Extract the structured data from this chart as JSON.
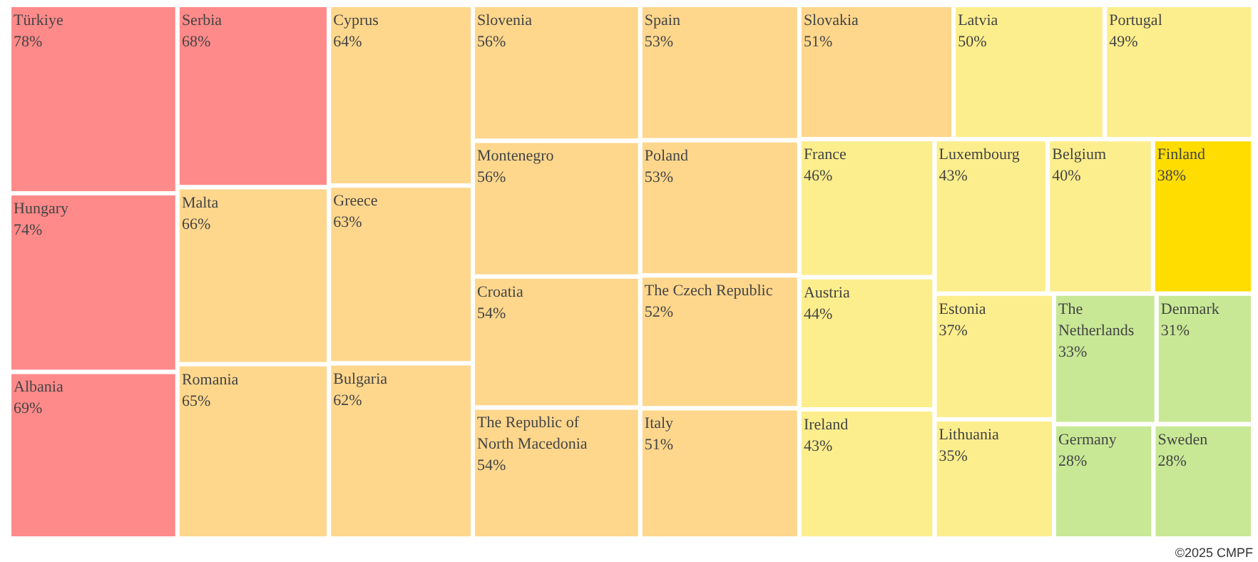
{
  "chart_data": {
    "type": "other",
    "categories": [
      "Türkiye",
      "Hungary",
      "Albania",
      "Serbia",
      "Malta",
      "Romania",
      "Cyprus",
      "Greece",
      "Bulgaria",
      "Slovenia",
      "Montenegro",
      "Croatia",
      "The Republic of North Macedonia",
      "Spain",
      "Poland",
      "The Czech Republic",
      "Italy",
      "Slovakia",
      "Latvia",
      "Portugal",
      "France",
      "Austria",
      "Ireland",
      "Luxembourg",
      "Belgium",
      "Finland",
      "Estonia",
      "Lithuania",
      "The Netherlands",
      "Denmark",
      "Germany",
      "Sweden"
    ],
    "values": [
      78,
      74,
      69,
      68,
      66,
      65,
      64,
      63,
      62,
      56,
      56,
      54,
      54,
      53,
      53,
      52,
      51,
      51,
      50,
      49,
      46,
      44,
      43,
      43,
      40,
      38,
      37,
      35,
      33,
      31,
      28,
      28
    ],
    "value_labels": [
      "78%",
      "74%",
      "69%",
      "68%",
      "66%",
      "65%",
      "64%",
      "63%",
      "62%",
      "56%",
      "56%",
      "54%",
      "54%",
      "53%",
      "53%",
      "52%",
      "51%",
      "51%",
      "50%",
      "49%",
      "46%",
      "44%",
      "43%",
      "43%",
      "40%",
      "38%",
      "37%",
      "35%",
      "33%",
      "31%",
      "28%",
      "28%"
    ],
    "colors": [
      "#ff8a8a",
      "#ff8a8a",
      "#ff8a8a",
      "#ff8a8a",
      "#fed78d",
      "#fed78d",
      "#fed78d",
      "#fed78d",
      "#fed78d",
      "#fed78d",
      "#fed78d",
      "#fed78d",
      "#fed78d",
      "#fed78d",
      "#fed78d",
      "#fed78d",
      "#fed78d",
      "#fed78d",
      "#fdee8d",
      "#fdee8d",
      "#fdee8d",
      "#fdee8d",
      "#fdee8d",
      "#fdee8d",
      "#fdee8d",
      "#ffdd00",
      "#fdee8d",
      "#fdee8d",
      "#c8e896",
      "#c8e896",
      "#c8e896",
      "#c8e896"
    ],
    "annotations": [
      "©2025 CMPF"
    ]
  }
}
